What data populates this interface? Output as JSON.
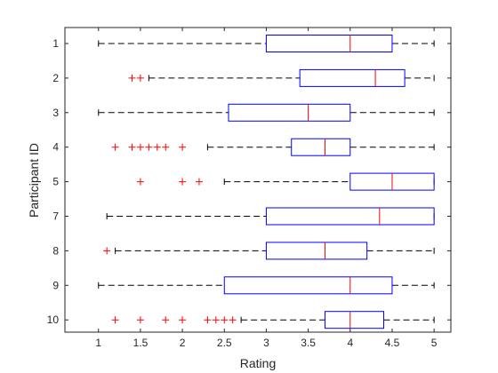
{
  "chart_data": {
    "type": "boxplot",
    "orientation": "horizontal",
    "xlabel": "Rating",
    "ylabel": "Participant ID",
    "xlim": [
      0.6,
      5.2
    ],
    "xticks": [
      "1",
      "1.5",
      "2",
      "2.5",
      "3",
      "3.5",
      "4",
      "4.5",
      "5"
    ],
    "grid": false,
    "colors": {
      "box": "#0000ff",
      "median": "#ff0000",
      "whisker": "#000000",
      "outlier": "#ff0000",
      "axis": "#262626"
    },
    "series": [
      {
        "label": "1",
        "whisker_low": 1.0,
        "q1": 3.0,
        "median": 4.0,
        "q3": 4.5,
        "whisker_high": 5.0,
        "outliers": []
      },
      {
        "label": "2",
        "whisker_low": 1.6,
        "q1": 3.4,
        "median": 4.3,
        "q3": 4.65,
        "whisker_high": 5.0,
        "outliers": [
          1.4,
          1.5
        ]
      },
      {
        "label": "3",
        "whisker_low": 1.0,
        "q1": 2.55,
        "median": 3.5,
        "q3": 4.0,
        "whisker_high": 5.0,
        "outliers": []
      },
      {
        "label": "4",
        "whisker_low": 2.3,
        "q1": 3.3,
        "median": 3.7,
        "q3": 4.0,
        "whisker_high": 5.0,
        "outliers": [
          1.2,
          1.4,
          1.5,
          1.6,
          1.7,
          1.8,
          2.0
        ]
      },
      {
        "label": "5",
        "whisker_low": 2.5,
        "q1": 4.0,
        "median": 4.5,
        "q3": 5.0,
        "whisker_high": 5.0,
        "outliers": [
          1.5,
          2.0,
          2.2
        ]
      },
      {
        "label": "7",
        "whisker_low": 1.1,
        "q1": 3.0,
        "median": 4.35,
        "q3": 5.0,
        "whisker_high": 5.0,
        "outliers": []
      },
      {
        "label": "8",
        "whisker_low": 1.2,
        "q1": 3.0,
        "median": 3.7,
        "q3": 4.2,
        "whisker_high": 5.0,
        "outliers": [
          1.1
        ]
      },
      {
        "label": "9",
        "whisker_low": 1.0,
        "q1": 2.5,
        "median": 4.0,
        "q3": 4.5,
        "whisker_high": 5.0,
        "outliers": []
      },
      {
        "label": "10",
        "whisker_low": 2.7,
        "q1": 3.7,
        "median": 4.0,
        "q3": 4.4,
        "whisker_high": 5.0,
        "outliers": [
          1.2,
          1.5,
          1.8,
          2.0,
          2.3,
          2.4,
          2.5,
          2.6
        ]
      }
    ]
  }
}
